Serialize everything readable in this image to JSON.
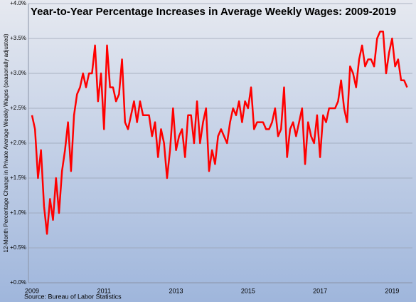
{
  "chart_data": {
    "type": "line",
    "title": "Year-to-Year Percentage Increases in Average Weekly Wages: 2009-2019",
    "y_label": "12-Month Percentage Change in Private Average Weekly Wages (seasonally adjusted)",
    "source": "Source: Bureau of Labor Statistics",
    "categories": [
      "2009",
      null,
      null,
      null,
      null,
      null,
      null,
      null,
      null,
      null,
      null,
      null,
      null,
      null,
      null,
      null,
      null,
      null,
      null,
      null,
      null,
      null,
      null,
      null,
      "2011",
      null,
      null,
      null,
      null,
      null,
      null,
      null,
      null,
      null,
      null,
      null,
      null,
      null,
      null,
      null,
      null,
      null,
      null,
      null,
      null,
      null,
      null,
      null,
      "2013",
      null,
      null,
      null,
      null,
      null,
      null,
      null,
      null,
      null,
      null,
      null,
      null,
      null,
      null,
      null,
      null,
      null,
      null,
      null,
      null,
      null,
      null,
      null,
      "2015",
      null,
      null,
      null,
      null,
      null,
      null,
      null,
      null,
      null,
      null,
      null,
      null,
      null,
      null,
      null,
      null,
      null,
      null,
      null,
      null,
      null,
      null,
      null,
      "2017",
      null,
      null,
      null,
      null,
      null,
      null,
      null,
      null,
      null,
      null,
      null,
      null,
      null,
      null,
      null,
      null,
      null,
      null,
      null,
      null,
      null,
      null,
      null,
      "2019",
      null,
      null,
      null,
      null,
      null
    ],
    "series": [
      {
        "name": "Average Weekly Wages",
        "color": "#ff0000",
        "values": [
          2.4,
          2.2,
          1.5,
          1.9,
          1.1,
          0.7,
          1.2,
          0.9,
          1.5,
          1.0,
          1.6,
          1.9,
          2.3,
          1.6,
          2.4,
          2.7,
          2.8,
          3.0,
          2.8,
          3.0,
          3.0,
          3.4,
          2.6,
          3.0,
          2.2,
          3.4,
          2.8,
          2.8,
          2.6,
          2.7,
          3.2,
          2.3,
          2.2,
          2.4,
          2.6,
          2.3,
          2.6,
          2.4,
          2.4,
          2.4,
          2.1,
          2.3,
          1.8,
          2.2,
          2.0,
          1.5,
          1.9,
          2.5,
          1.9,
          2.1,
          2.2,
          1.8,
          2.4,
          2.4,
          2.0,
          2.6,
          2.0,
          2.3,
          2.5,
          1.6,
          1.9,
          1.7,
          2.1,
          2.2,
          2.1,
          2.0,
          2.3,
          2.5,
          2.4,
          2.6,
          2.3,
          2.6,
          2.5,
          2.8,
          2.2,
          2.3,
          2.3,
          2.3,
          2.2,
          2.2,
          2.3,
          2.5,
          2.1,
          2.2,
          2.8,
          1.8,
          2.2,
          2.3,
          2.1,
          2.3,
          2.5,
          1.7,
          2.3,
          2.1,
          2.0,
          2.4,
          1.8,
          2.4,
          2.3,
          2.5,
          2.5,
          2.5,
          2.6,
          2.9,
          2.5,
          2.3,
          3.1,
          3.0,
          2.8,
          3.2,
          3.4,
          3.1,
          3.2,
          3.2,
          3.1,
          3.5,
          3.6,
          3.6,
          3.0,
          3.3,
          3.5,
          3.1,
          3.2,
          2.9,
          2.9,
          2.8
        ]
      }
    ],
    "ylim": [
      0,
      4
    ],
    "yticks": [
      {
        "value": 0,
        "label": "+0.0%"
      },
      {
        "value": 0.5,
        "label": "+0.5%"
      },
      {
        "value": 1,
        "label": "+1.0%"
      },
      {
        "value": 1.5,
        "label": "+1.5%"
      },
      {
        "value": 2,
        "label": "+2.0%"
      },
      {
        "value": 2.5,
        "label": "+2.5%"
      },
      {
        "value": 3,
        "label": "+3.0%"
      },
      {
        "value": 3.5,
        "label": "+3.5%"
      },
      {
        "value": 4,
        "label": "+4.0%"
      }
    ],
    "grid": true
  }
}
